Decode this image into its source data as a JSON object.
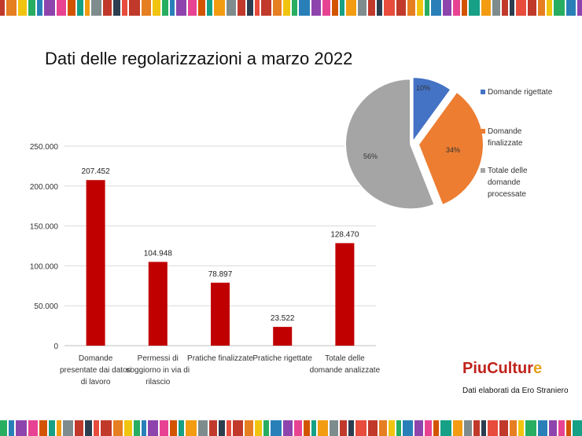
{
  "title": "Dati delle regolarizzazioni a marzo 2022",
  "stripe_colors": [
    "#c0392b",
    "#e67e22",
    "#f1c40f",
    "#27ae60",
    "#2980b9",
    "#8e44ad",
    "#e84393",
    "#d35400",
    "#16a085",
    "#f39c12",
    "#7f8c8d",
    "#c0392b",
    "#2c3e50",
    "#e74c3c"
  ],
  "chart_data": [
    {
      "type": "bar",
      "categories": [
        "Domande presentate dai datori di lavoro",
        "Permessi di soggiorno in via di rilascio",
        "Pratiche finalizzate",
        "Pratiche rigettate",
        "Totale delle domande analizzate"
      ],
      "category_lines": [
        [
          "Domande",
          "presentate dai datori",
          "di lavoro"
        ],
        [
          "Permessi di",
          "soggiorno in via di",
          "rilascio"
        ],
        [
          "Pratiche finalizzate"
        ],
        [
          "Pratiche rigettate"
        ],
        [
          "Totale delle",
          "domande analizzate"
        ]
      ],
      "values": [
        207452,
        104948,
        78897,
        23522,
        128470
      ],
      "data_labels": [
        "207.452",
        "104.948",
        "78.897",
        "23.522",
        "128.470"
      ],
      "yticks": [
        0,
        50000,
        100000,
        150000,
        200000,
        250000
      ],
      "ytick_labels": [
        "0",
        "50.000",
        "100.000",
        "150.000",
        "200.000",
        "250.000"
      ],
      "ylim": [
        0,
        250000
      ],
      "grid": true,
      "bar_color": "#c00000"
    },
    {
      "type": "pie",
      "labels": [
        "Domande rigettate",
        "Domande finalizzate",
        "Totale delle domande processate"
      ],
      "legend_lines": [
        [
          "Domande rigettate"
        ],
        [
          "Domande",
          "finalizzate"
        ],
        [
          "Totale delle",
          "domande",
          "processate"
        ]
      ],
      "values": [
        10,
        34,
        56
      ],
      "data_labels": [
        "10%",
        "34%",
        "56%"
      ],
      "colors": [
        "#4472c4",
        "#ed7d31",
        "#a5a5a5"
      ],
      "legend_position": "right"
    }
  ],
  "logo": {
    "part1": "PiuCultur",
    "part2": "e"
  },
  "credit": "Dati elaborati da Ero Straniero"
}
